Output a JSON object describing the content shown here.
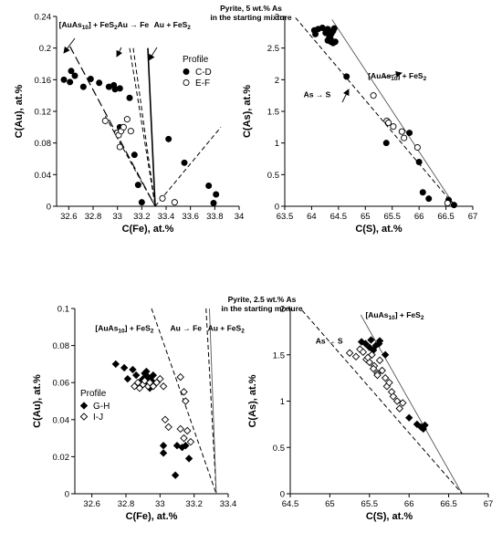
{
  "headers": [
    {
      "line1": "Pyrite, 5 wt.% As",
      "line2": "in the starting mixture"
    },
    {
      "line1": "Pyrite, 2.5 wt.% As",
      "line2": "in the starting mixture"
    }
  ],
  "chart_data": [
    {
      "id": "panel-a",
      "type": "scatter",
      "xlabel": "C(Fe), at.%",
      "ylabel": "C(Au), at.%",
      "xlim": [
        32.5,
        34
      ],
      "ylim": [
        0,
        0.24
      ],
      "xticks": [
        32.6,
        32.8,
        33,
        33.2,
        33.4,
        33.6,
        33.8,
        34
      ],
      "yticks": [
        0,
        0.04,
        0.08,
        0.12,
        0.16,
        0.2,
        0.24
      ],
      "yticks_text": [
        "0",
        "0.04",
        "0.08",
        "0.12",
        "0.16",
        "0.2",
        "0.24"
      ],
      "legend": {
        "title": "Profile",
        "position": "right",
        "entries": [
          {
            "label": "C-D",
            "marker": "filled-circle"
          },
          {
            "label": "E-F",
            "marker": "open-circle"
          }
        ]
      },
      "series": [
        {
          "name": "C-D",
          "marker": "filled-circle",
          "x": [
            32.56,
            32.62,
            32.65,
            32.61,
            32.72,
            32.78,
            32.85,
            32.93,
            32.98,
            33.02,
            32.97,
            33.1,
            33.14,
            33.17,
            33.2,
            33.42,
            33.55,
            33.75,
            33.81,
            33.79,
            33.02
          ],
          "y": [
            0.16,
            0.171,
            0.165,
            0.157,
            0.151,
            0.161,
            0.156,
            0.151,
            0.148,
            0.149,
            0.153,
            0.137,
            0.065,
            0.027,
            0.005,
            0.085,
            0.055,
            0.026,
            0.015,
            0.004,
            0.1
          ]
        },
        {
          "name": "E-F",
          "marker": "open-circle",
          "x": [
            32.9,
            33.0,
            33.01,
            33.03,
            33.05,
            33.08,
            33.11,
            33.02,
            33.37,
            33.47
          ],
          "y": [
            0.108,
            0.093,
            0.09,
            0.095,
            0.1,
            0.11,
            0.095,
            0.075,
            0.01,
            0.005
          ]
        }
      ],
      "lines": [
        {
          "name": "[AuAs10] + FeS2",
          "style": "long-dash",
          "x": [
            32.61,
            33.31
          ],
          "y": [
            0.202,
            0
          ]
        },
        {
          "name": "Au → Fe",
          "style": "dash",
          "x": [
            33.1,
            33.31
          ],
          "y": [
            0.2,
            0
          ]
        },
        {
          "name": "Au + FeS2",
          "style": "dash",
          "x": [
            33.13,
            33.31
          ],
          "y": [
            0.2,
            0
          ]
        },
        {
          "name": "Au + FeS2 (solid)",
          "style": "solid",
          "x": [
            33.25,
            33.31
          ],
          "y": [
            0.2,
            0
          ]
        },
        {
          "name": "E-F trend",
          "style": "dash",
          "x": [
            32.9,
            33.31
          ],
          "y": [
            0.114,
            0
          ]
        },
        {
          "name": "C-D trend (right)",
          "style": "dash",
          "x": [
            33.31,
            33.85
          ],
          "y": [
            0,
            0.1
          ]
        }
      ],
      "annotations": [
        {
          "text": "[AuAs",
          "sub": "10",
          "after": "] + FeS",
          "sub2": "2",
          "at": [
            32.52,
            0.226
          ]
        },
        {
          "text": "Au → Fe",
          "at": [
            33.0,
            0.226
          ]
        },
        {
          "text": "Au + FeS",
          "sub2": "2",
          "at": [
            33.3,
            0.226
          ]
        }
      ]
    },
    {
      "id": "panel-b",
      "type": "scatter",
      "xlabel": "C(S), at.%",
      "ylabel": "C(As), at.%",
      "xlim": [
        63.5,
        67
      ],
      "ylim": [
        0,
        3
      ],
      "xticks": [
        63.5,
        64,
        64.5,
        65,
        65.5,
        66,
        66.5,
        67
      ],
      "yticks": [
        0,
        0.5,
        1,
        1.5,
        2,
        2.5,
        3
      ],
      "series": [
        {
          "name": "C-D",
          "marker": "filled-circle",
          "x": [
            64.05,
            64.07,
            64.12,
            64.2,
            64.26,
            64.3,
            64.33,
            64.35,
            64.37,
            64.4,
            64.42,
            64.44,
            64.36,
            64.4,
            64.3,
            64.65,
            65.39,
            65.82,
            66.0,
            66.07,
            66.18,
            66.55,
            66.65
          ],
          "y": [
            2.78,
            2.72,
            2.8,
            2.82,
            2.74,
            2.8,
            2.67,
            2.65,
            2.73,
            2.77,
            2.81,
            2.6,
            2.6,
            2.58,
            2.62,
            2.05,
            1.0,
            1.16,
            0.7,
            0.22,
            0.12,
            0.1,
            0.02
          ]
        },
        {
          "name": "E-F",
          "marker": "open-circle",
          "x": [
            65.15,
            65.4,
            65.43,
            65.52,
            65.68,
            65.72,
            65.97,
            66.53
          ],
          "y": [
            1.75,
            1.35,
            1.32,
            1.26,
            1.18,
            1.08,
            0.93,
            0.05
          ]
        }
      ],
      "lines": [
        {
          "name": "[AuAs10] + FeS2",
          "style": "solid-gray",
          "x": [
            64.38,
            66.67
          ],
          "y": [
            2.95,
            0
          ]
        },
        {
          "name": "As → S",
          "style": "dash",
          "x": [
            63.7,
            66.67
          ],
          "y": [
            2.98,
            0
          ]
        }
      ],
      "annotations": [
        {
          "text": "[AuAs",
          "sub": "10",
          "after": "] + FeS",
          "sub2": "2",
          "at": [
            65.05,
            2.02
          ]
        },
        {
          "text": "As → S",
          "at": [
            63.85,
            1.72
          ]
        }
      ]
    },
    {
      "id": "panel-c",
      "type": "scatter",
      "xlabel": "C(Fe), at.%",
      "ylabel": "C(Au), at.%",
      "xlim": [
        32.5,
        33.4
      ],
      "ylim": [
        0,
        0.1
      ],
      "xticks": [
        32.6,
        32.8,
        33,
        33.2,
        33.4
      ],
      "yticks": [
        0,
        0.02,
        0.04,
        0.06,
        0.08,
        0.1
      ],
      "yticks_text": [
        "0",
        "0.02",
        "0.04",
        "0.06",
        "0.08",
        "0.1"
      ],
      "legend": {
        "title": "Profile",
        "position": "left",
        "entries": [
          {
            "label": "G-H",
            "marker": "filled-diamond"
          },
          {
            "label": "I-J",
            "marker": "open-diamond"
          }
        ]
      },
      "series": [
        {
          "name": "G-H",
          "marker": "filled-diamond",
          "x": [
            32.74,
            32.79,
            32.81,
            32.84,
            32.86,
            32.88,
            32.9,
            32.91,
            32.92,
            32.93,
            32.94,
            32.95,
            32.96,
            32.89,
            32.92,
            33.02,
            33.02,
            33.1,
            33.13,
            33.15,
            33.17,
            33.09
          ],
          "y": [
            0.07,
            0.068,
            0.062,
            0.067,
            0.064,
            0.06,
            0.062,
            0.065,
            0.06,
            0.063,
            0.057,
            0.061,
            0.064,
            0.059,
            0.066,
            0.026,
            0.022,
            0.026,
            0.025,
            0.026,
            0.019,
            0.01
          ]
        },
        {
          "name": "I-J",
          "marker": "open-diamond",
          "x": [
            32.85,
            32.87,
            32.88,
            32.9,
            32.91,
            32.93,
            32.94,
            32.96,
            32.98,
            33.0,
            33.02,
            33.12,
            33.14,
            33.15,
            33.03,
            33.05,
            33.12,
            33.14,
            33.16,
            33.18
          ],
          "y": [
            0.058,
            0.06,
            0.057,
            0.059,
            0.061,
            0.058,
            0.06,
            0.058,
            0.06,
            0.062,
            0.058,
            0.063,
            0.055,
            0.05,
            0.04,
            0.036,
            0.035,
            0.03,
            0.034,
            0.028
          ]
        }
      ],
      "lines": [
        {
          "name": "[AuAs10] + FeS2",
          "style": "dash",
          "x": [
            32.95,
            33.33
          ],
          "y": [
            0.1,
            0
          ]
        },
        {
          "name": "Au → Fe",
          "style": "dash",
          "x": [
            33.27,
            33.33
          ],
          "y": [
            0.1,
            0
          ]
        },
        {
          "name": "Au + FeS2",
          "style": "solid-gray",
          "x": [
            33.29,
            33.33
          ],
          "y": [
            0.1,
            0
          ]
        }
      ],
      "annotations": [
        {
          "text": "[AuAs",
          "sub": "10",
          "after": "] + FeS",
          "sub2": "2",
          "at": [
            32.62,
            0.088
          ]
        },
        {
          "text": "Au → Fe",
          "at": [
            33.06,
            0.088
          ]
        },
        {
          "text": "Au + FeS",
          "sub2": "2",
          "at": [
            33.28,
            0.088
          ]
        }
      ]
    },
    {
      "id": "panel-d",
      "type": "scatter",
      "xlabel": "C(S), at.%",
      "ylabel": "C(As), at.%",
      "xlim": [
        64.5,
        67
      ],
      "ylim": [
        0,
        2
      ],
      "xticks": [
        64.5,
        65,
        65.5,
        66,
        66.5,
        67
      ],
      "yticks": [
        0,
        0.5,
        1,
        1.5,
        2
      ],
      "series": [
        {
          "name": "G-H",
          "marker": "filled-diamond",
          "x": [
            65.4,
            65.45,
            65.5,
            65.52,
            65.55,
            65.58,
            65.62,
            65.63,
            65.7,
            66.0,
            66.1,
            66.15,
            66.2,
            66.18
          ],
          "y": [
            1.64,
            1.62,
            1.58,
            1.66,
            1.55,
            1.6,
            1.62,
            1.65,
            1.5,
            0.82,
            0.75,
            0.72,
            0.74,
            0.7
          ]
        },
        {
          "name": "I-J",
          "marker": "open-diamond",
          "x": [
            65.25,
            65.33,
            65.38,
            65.42,
            65.46,
            65.5,
            65.53,
            65.56,
            65.6,
            65.63,
            65.66,
            65.7,
            65.72,
            65.75,
            65.78,
            65.8,
            65.85,
            65.88,
            65.92,
            65.55,
            65.48,
            65.6
          ],
          "y": [
            1.52,
            1.48,
            1.56,
            1.53,
            1.45,
            1.42,
            1.5,
            1.38,
            1.3,
            1.44,
            1.33,
            1.25,
            1.16,
            1.2,
            1.1,
            1.05,
            1.0,
            0.92,
            0.98,
            1.35,
            1.47,
            1.28
          ]
        }
      ],
      "lines": [
        {
          "name": "[AuAs10] + FeS2",
          "style": "solid-gray",
          "x": [
            65.39,
            66.67
          ],
          "y": [
            1.93,
            0
          ]
        },
        {
          "name": "As → S",
          "style": "dash",
          "x": [
            64.65,
            66.67
          ],
          "y": [
            1.98,
            0
          ]
        }
      ],
      "annotations": [
        {
          "text": "[AuAs",
          "sub": "10",
          "after": "] + FeS",
          "sub2": "2",
          "at": [
            65.45,
            1.9
          ]
        },
        {
          "text": "As → S",
          "at": [
            64.82,
            1.62
          ]
        }
      ]
    }
  ]
}
